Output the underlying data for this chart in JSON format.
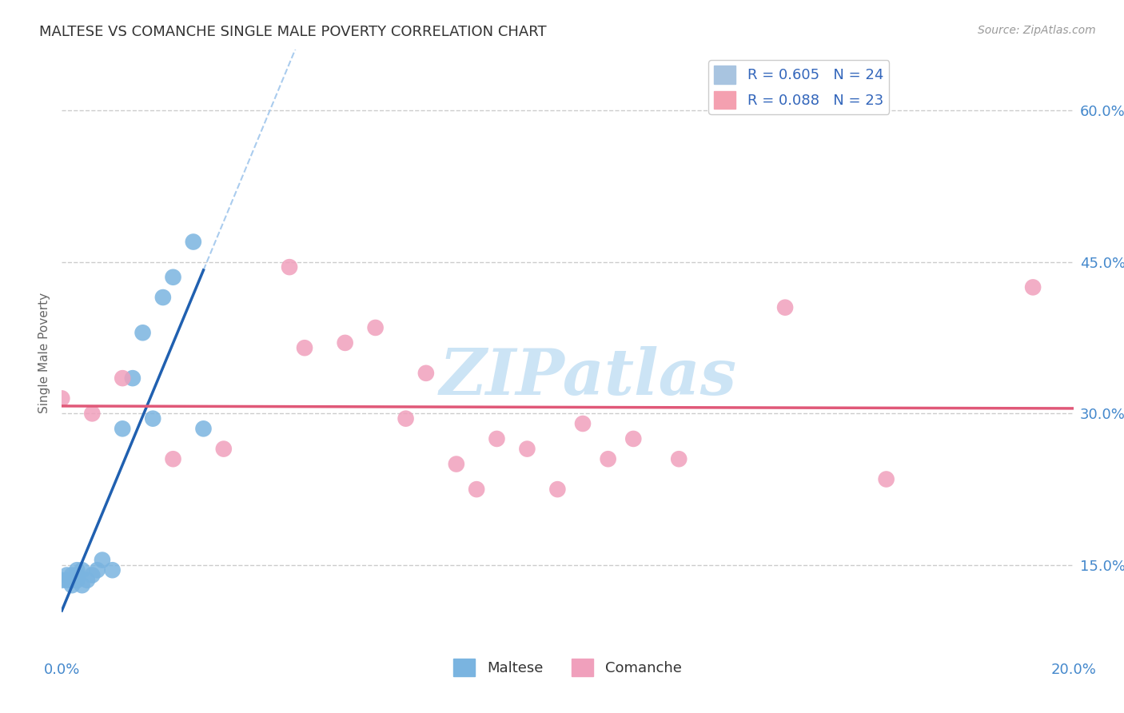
{
  "title": "MALTESE VS COMANCHE SINGLE MALE POVERTY CORRELATION CHART",
  "source": "Source: ZipAtlas.com",
  "ylabel": "Single Male Poverty",
  "xlim": [
    0.0,
    0.2
  ],
  "ylim": [
    0.06,
    0.66
  ],
  "yticks": [
    0.15,
    0.3,
    0.45,
    0.6
  ],
  "ytick_labels": [
    "15.0%",
    "30.0%",
    "45.0%",
    "60.0%"
  ],
  "xtick_left": "0.0%",
  "xtick_right": "20.0%",
  "legend_entries": [
    {
      "label": "R = 0.605   N = 24",
      "color": "#a8c4e0"
    },
    {
      "label": "R = 0.088   N = 23",
      "color": "#f4a0b0"
    }
  ],
  "maltese_x": [
    0.0,
    0.001,
    0.001,
    0.002,
    0.002,
    0.002,
    0.003,
    0.003,
    0.003,
    0.004,
    0.004,
    0.005,
    0.006,
    0.007,
    0.008,
    0.01,
    0.012,
    0.014,
    0.016,
    0.018,
    0.02,
    0.022,
    0.026,
    0.028
  ],
  "maltese_y": [
    0.135,
    0.135,
    0.14,
    0.13,
    0.135,
    0.14,
    0.135,
    0.14,
    0.145,
    0.13,
    0.145,
    0.135,
    0.14,
    0.145,
    0.155,
    0.145,
    0.285,
    0.335,
    0.38,
    0.295,
    0.415,
    0.435,
    0.47,
    0.285
  ],
  "comanche_x": [
    0.0,
    0.006,
    0.012,
    0.022,
    0.032,
    0.045,
    0.048,
    0.056,
    0.062,
    0.068,
    0.072,
    0.078,
    0.082,
    0.086,
    0.092,
    0.098,
    0.103,
    0.108,
    0.113,
    0.122,
    0.143,
    0.163,
    0.192
  ],
  "comanche_y": [
    0.315,
    0.3,
    0.335,
    0.255,
    0.265,
    0.445,
    0.365,
    0.37,
    0.385,
    0.295,
    0.34,
    0.25,
    0.225,
    0.275,
    0.265,
    0.225,
    0.29,
    0.255,
    0.275,
    0.255,
    0.405,
    0.235,
    0.425
  ],
  "maltese_color": "#7ab4e0",
  "comanche_color": "#f0a0bc",
  "maltese_line_color": "#2060b0",
  "comanche_line_color": "#e05878",
  "maltese_line_solid_xmax": 0.028,
  "maltese_line_dash_xmax": 0.064,
  "background_color": "#ffffff",
  "grid_color": "#cccccc",
  "title_color": "#333333",
  "axis_tick_color": "#4488cc",
  "watermark_text": "ZIPatlas",
  "watermark_color": "#cce4f5",
  "bottom_legend": [
    {
      "label": "Maltese",
      "color": "#7ab4e0"
    },
    {
      "label": "Comanche",
      "color": "#f0a0bc"
    }
  ]
}
